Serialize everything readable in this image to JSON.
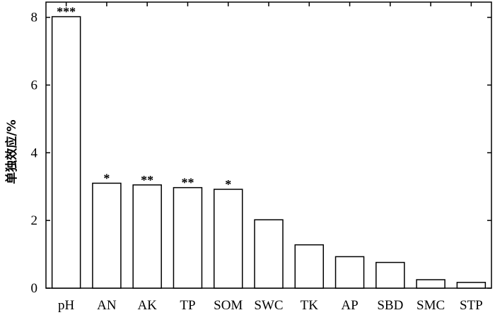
{
  "chart_data": {
    "type": "bar",
    "title": "",
    "xlabel": "",
    "ylabel": "单独效应/%",
    "ylim": [
      0,
      8.45
    ],
    "yticks": [
      0,
      2,
      4,
      6,
      8
    ],
    "grid": false,
    "legend": "none",
    "categories": [
      "pH",
      "AN",
      "AK",
      "TP",
      "SOM",
      "SWC",
      "TK",
      "AP",
      "SBD",
      "SMC",
      "STP"
    ],
    "values": [
      8.02,
      3.1,
      3.05,
      2.97,
      2.92,
      2.02,
      1.28,
      0.93,
      0.76,
      0.25,
      0.17
    ],
    "significance": [
      "***",
      "*",
      "**",
      "**",
      "*",
      "",
      "",
      "",
      "",
      "",
      ""
    ],
    "colors": {
      "bar_fill": "#ffffff",
      "bar_stroke": "#000000",
      "axis": "#000000"
    }
  }
}
